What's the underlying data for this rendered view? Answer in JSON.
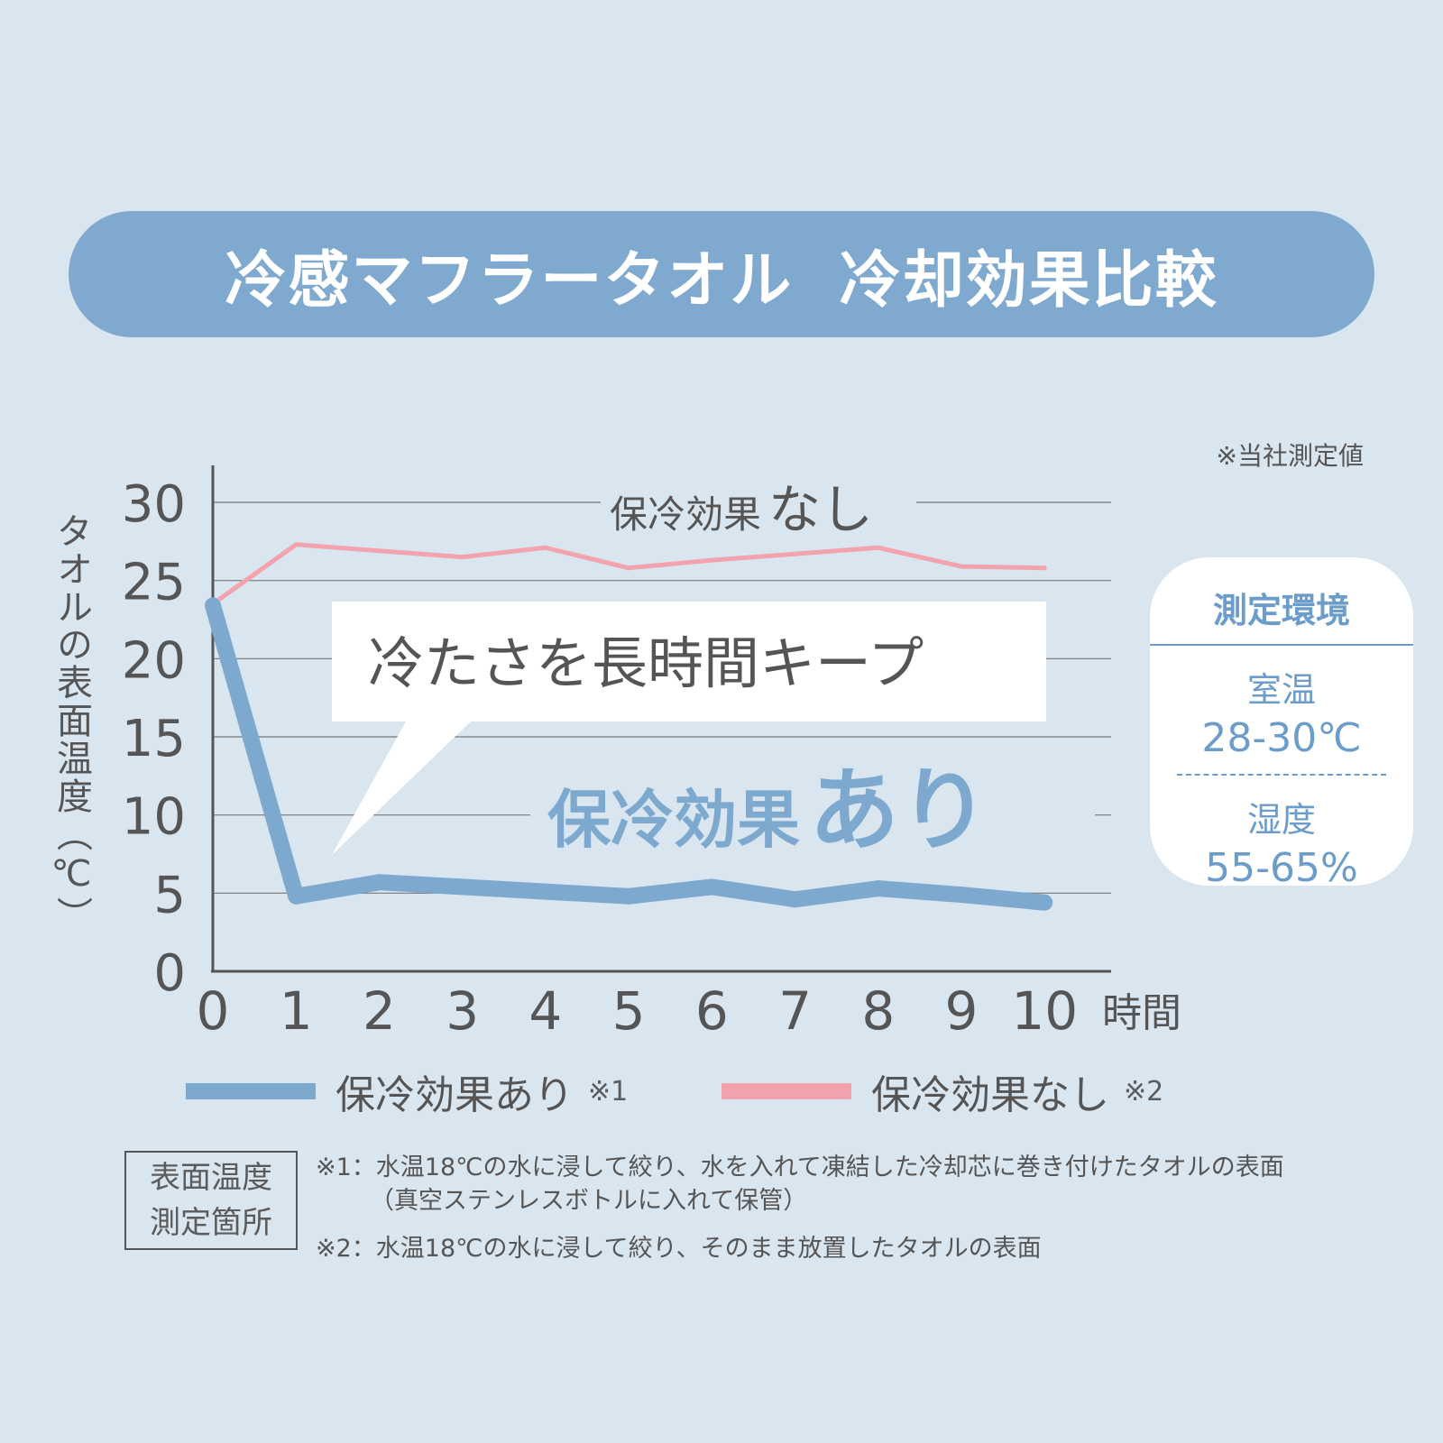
{
  "title": "冷感マフラータオル  冷却効果比較",
  "measurement_note": "※当社測定値",
  "callout_text": "冷たさを長時間キープ",
  "chart_data": {
    "type": "line",
    "title": "",
    "ylabel": "タオルの表面温度（℃）",
    "xlabel": "時間",
    "x": [
      0,
      1,
      2,
      3,
      4,
      5,
      6,
      7,
      8,
      9,
      10
    ],
    "xticks": [
      "0",
      "1",
      "2",
      "3",
      "4",
      "5",
      "6",
      "7",
      "8",
      "9",
      "10"
    ],
    "yticks": [
      "0",
      "5",
      "10",
      "15",
      "20",
      "25",
      "30"
    ],
    "ylim": [
      0,
      30
    ],
    "xlim": [
      0,
      10.8
    ],
    "grid": true,
    "series": [
      {
        "name": "保冷効果なし",
        "label_prefix": "保冷効果",
        "label_suffix": "なし",
        "color": "#f2a3ad",
        "values": [
          23.5,
          27.3,
          26.9,
          26.5,
          27.1,
          25.8,
          26.3,
          26.7,
          27.1,
          25.9,
          25.8
        ]
      },
      {
        "name": "保冷効果あり",
        "label_prefix": "保冷効果",
        "label_suffix": "あり",
        "color": "#7ea9cf",
        "values": [
          23.4,
          4.8,
          5.7,
          5.4,
          5.1,
          4.8,
          5.4,
          4.6,
          5.3,
          4.9,
          4.4
        ]
      }
    ],
    "legend_placement": "bottom"
  },
  "environment": {
    "title": "測定環境",
    "room_temp_label": "室温",
    "room_temp_value": "28-30℃",
    "humidity_label": "湿度",
    "humidity_value": "55-65%"
  },
  "legend": [
    {
      "label": "保冷効果あり",
      "note_mark": "※1",
      "color": "#7ea9cf"
    },
    {
      "label": "保冷効果なし",
      "note_mark": "※2",
      "color": "#f2a3ad"
    }
  ],
  "footnote_box": {
    "line1": "表面温度",
    "line2": "測定箇所"
  },
  "footnotes": {
    "note1_line1": "※1：水温18℃の水に浸して絞り、水を入れて凍結した冷却芯に巻き付けたタオルの表面",
    "note1_line2": "（真空ステンレスボトルに入れて保管）",
    "note2": "※2：水温18℃の水に浸して絞り、そのまま放置したタオルの表面"
  }
}
